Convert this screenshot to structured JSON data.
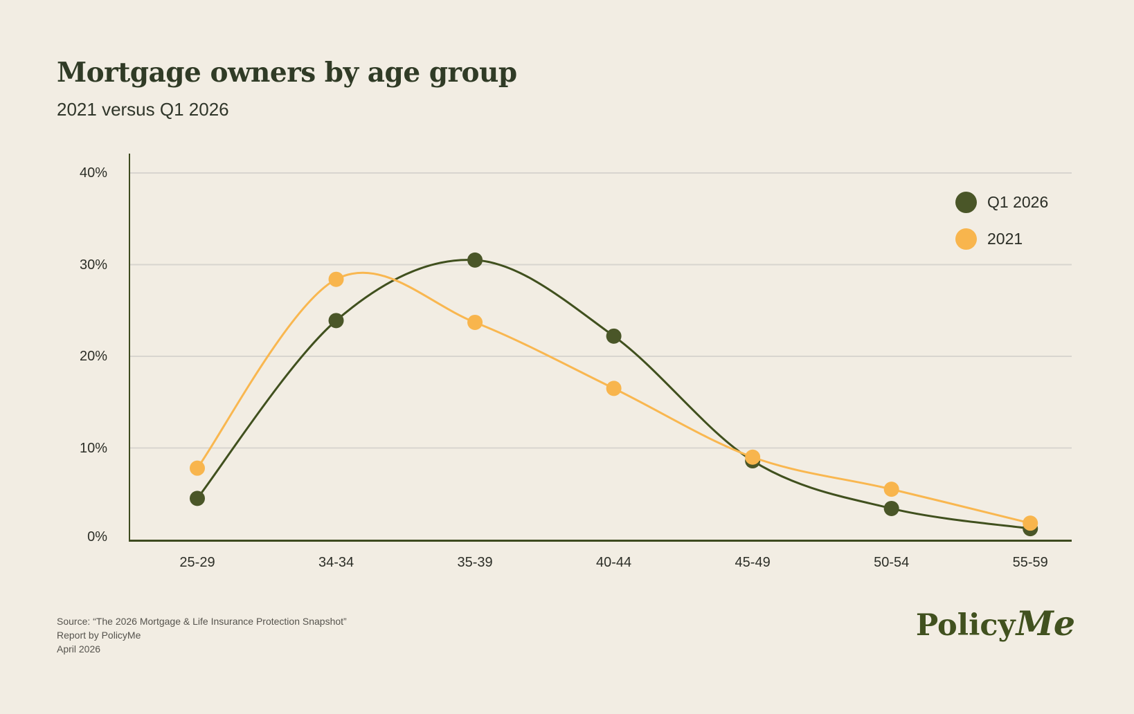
{
  "header": {
    "title": "Mortgage owners by age group",
    "subtitle": "2021 versus Q1 2026"
  },
  "legend": [
    {
      "label": "Q1 2026",
      "color": "#4a5628"
    },
    {
      "label": "2021",
      "color": "#f8b54d"
    }
  ],
  "footer": {
    "source_line1": "Source: “The 2026 Mortgage & Life Insurance Protection Snapshot”",
    "source_line2": "Report by PolicyMe",
    "source_line3": "April 2026",
    "logo_policy": "Policy",
    "logo_me": "Me"
  },
  "chart_data": {
    "type": "line",
    "title": "Mortgage owners by age group",
    "subtitle": "2021 versus Q1 2026",
    "categories": [
      "25-29",
      "34-34",
      "35-39",
      "40-44",
      "45-49",
      "50-54",
      "55-59"
    ],
    "series": [
      {
        "name": "Q1 2026",
        "color": "#4a5628",
        "line_color": "#40501e",
        "values": [
          4.5,
          23.9,
          30.5,
          22.2,
          8.6,
          3.4,
          1.2
        ]
      },
      {
        "name": "2021",
        "color": "#f8b54d",
        "line_color": "#f9b750",
        "values": [
          7.8,
          28.4,
          23.7,
          16.5,
          9.0,
          5.5,
          1.8
        ]
      }
    ],
    "ytick_values": [
      40,
      30,
      20,
      10,
      0
    ],
    "ytick_labels": [
      "40%",
      "30%",
      "20%",
      "10%",
      "0%"
    ],
    "ylim": [
      0,
      42
    ],
    "unit": "%",
    "grid": true,
    "smooth": true,
    "legend_position": "top-right",
    "colors": {
      "background": "#f2ede3",
      "gridline": "#d8d5cf",
      "axis": "#3d4b1f",
      "green": "#4a5628",
      "orange": "#f8b54d"
    }
  }
}
